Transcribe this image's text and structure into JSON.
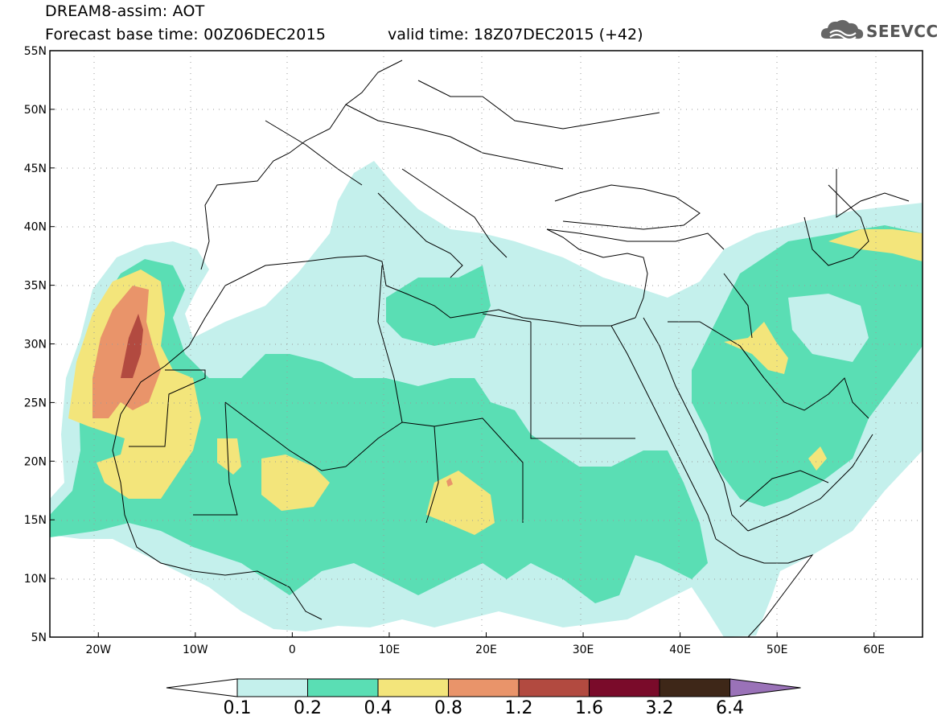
{
  "header": {
    "title": "DREAM8-assim: AOT",
    "forecast_base": "Forecast base time: 00Z06DEC2015",
    "valid_time": "valid time: 18Z07DEC2015 (+42)"
  },
  "logo": {
    "text": "SEEVCCC",
    "icon": "cloud-icon"
  },
  "map": {
    "lon_range": [
      -25,
      65
    ],
    "lat_range": [
      5,
      55
    ],
    "lat_ticks": [
      {
        "value": 55,
        "label": "55N"
      },
      {
        "value": 50,
        "label": "50N"
      },
      {
        "value": 45,
        "label": "45N"
      },
      {
        "value": 40,
        "label": "40N"
      },
      {
        "value": 35,
        "label": "35N"
      },
      {
        "value": 30,
        "label": "30N"
      },
      {
        "value": 25,
        "label": "25N"
      },
      {
        "value": 20,
        "label": "20N"
      },
      {
        "value": 15,
        "label": "15N"
      },
      {
        "value": 10,
        "label": "10N"
      },
      {
        "value": 5,
        "label": "5N"
      }
    ],
    "lon_ticks": [
      {
        "value": -20,
        "label": "20W"
      },
      {
        "value": -10,
        "label": "10W"
      },
      {
        "value": 0,
        "label": "0"
      },
      {
        "value": 10,
        "label": "10E"
      },
      {
        "value": 20,
        "label": "20E"
      },
      {
        "value": 30,
        "label": "30E"
      },
      {
        "value": 40,
        "label": "40E"
      },
      {
        "value": 50,
        "label": "50E"
      },
      {
        "value": 60,
        "label": "60E"
      }
    ]
  },
  "colorbar": {
    "levels": [
      "0.1",
      "0.2",
      "0.4",
      "0.8",
      "1.2",
      "1.6",
      "3.2",
      "6.4"
    ],
    "colors": [
      "#c4f0ec",
      "#5ade b4",
      "#f3e57b",
      "#e9946a",
      "#b24a40",
      "#7a0b2a",
      "#3e2718",
      "#9a72b8"
    ]
  }
}
